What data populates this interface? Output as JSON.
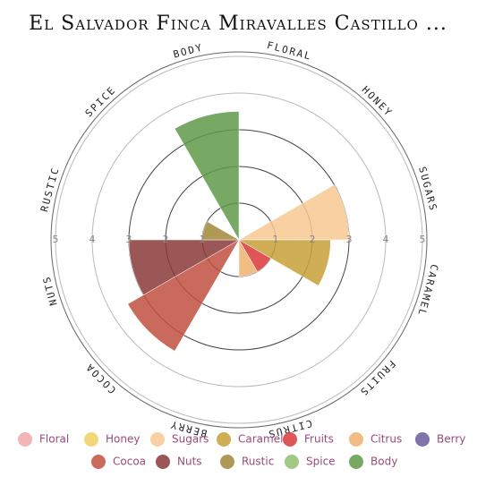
{
  "chart_data": {
    "type": "polar-area",
    "title": "El Salvador Finca Miravalles Castillo ...",
    "categories": [
      "Body",
      "Floral",
      "Honey",
      "Sugars",
      "Caramel",
      "Fruits",
      "Citrus",
      "Berry",
      "Cocoa",
      "Nuts",
      "Rustic",
      "Spice"
    ],
    "values": [
      3.5,
      0,
      0,
      3,
      2.5,
      1,
      1,
      0,
      3.5,
      3,
      1,
      0
    ],
    "colors": [
      "#5f9a4a",
      "#f0a8a8",
      "#f0d060",
      "#f8c890",
      "#c8a038",
      "#d83838",
      "#f0b070",
      "#6a5aa0",
      "#c05040",
      "#8a3838",
      "#a08838",
      "#90c070"
    ],
    "rlim": [
      0,
      5
    ],
    "rticks": [
      1,
      2,
      3,
      4,
      5
    ],
    "legend_order": [
      1,
      2,
      3,
      4,
      5,
      6,
      7,
      8,
      9,
      10,
      11,
      0
    ]
  }
}
